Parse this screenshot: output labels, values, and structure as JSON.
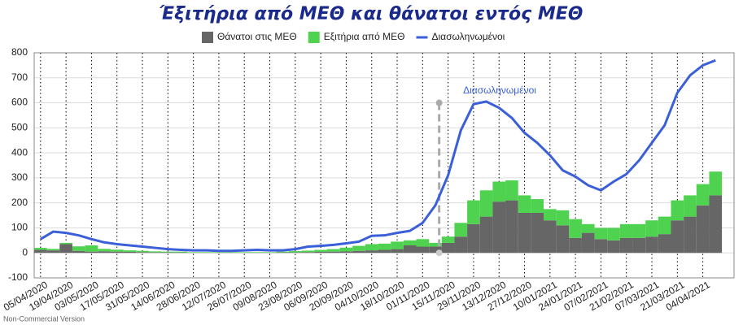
{
  "chart_data": {
    "type": "stacked-bar-line",
    "title": "Έξιτήρια από ΜΕΘ και θάνατοι εντός ΜΕΘ",
    "annotation": "Διασωληνωμένοι",
    "watermark": "Non-Commercial Version",
    "categories": [
      "05/04/2020",
      null,
      "19/04/2020",
      null,
      "03/05/2020",
      null,
      "17/05/2020",
      null,
      "31/05/2020",
      null,
      "14/06/2020",
      null,
      "28/06/2020",
      null,
      "12/07/2020",
      null,
      "26/07/2020",
      null,
      "09/08/2020",
      null,
      "23/08/2020",
      null,
      "06/09/2020",
      null,
      "20/09/2020",
      null,
      "04/10/2020",
      null,
      "18/10/2020",
      null,
      "01/11/2020",
      null,
      "15/11/2020",
      null,
      "29/11/2020",
      null,
      "13/12/2020",
      null,
      "27/12/2020",
      null,
      "10/01/2021",
      null,
      "24/01/2021",
      null,
      "07/02/2021",
      null,
      "21/02/2021",
      null,
      "07/03/2021",
      null,
      "21/03/2021",
      null,
      "04/04/2021",
      null
    ],
    "series": [
      {
        "name": "Θάνατοι στις ΜΕΘ",
        "color": "#666666",
        "kind": "bar",
        "values": [
          12,
          10,
          35,
          8,
          5,
          6,
          5,
          4,
          3,
          2,
          2,
          2,
          1,
          1,
          1,
          1,
          1,
          1,
          1,
          2,
          2,
          3,
          4,
          5,
          6,
          8,
          10,
          12,
          15,
          30,
          25,
          25,
          40,
          65,
          115,
          145,
          205,
          210,
          160,
          160,
          130,
          110,
          60,
          80,
          55,
          50,
          60,
          60,
          65,
          75,
          130,
          145,
          190,
          230
        ]
      },
      {
        "name": "Εξιτήρια από ΜΕΘ",
        "color": "#4fd24f",
        "kind": "bar",
        "values": [
          8,
          6,
          5,
          18,
          25,
          10,
          8,
          6,
          5,
          4,
          3,
          3,
          2,
          2,
          2,
          2,
          2,
          2,
          2,
          3,
          5,
          6,
          8,
          10,
          15,
          20,
          25,
          25,
          30,
          20,
          30,
          15,
          25,
          55,
          95,
          105,
          80,
          80,
          70,
          55,
          45,
          60,
          75,
          35,
          45,
          50,
          55,
          55,
          65,
          70,
          80,
          85,
          85,
          95
        ]
      },
      {
        "name": "Διασωληνωμένοι",
        "color": "#3b5fd9",
        "kind": "line",
        "values": [
          55,
          85,
          80,
          70,
          55,
          42,
          35,
          30,
          25,
          20,
          15,
          12,
          10,
          10,
          8,
          8,
          10,
          12,
          10,
          10,
          15,
          25,
          28,
          32,
          38,
          45,
          68,
          70,
          80,
          88,
          120,
          190,
          310,
          490,
          595,
          605,
          580,
          540,
          480,
          440,
          390,
          330,
          305,
          270,
          250,
          285,
          315,
          370,
          440,
          510,
          640,
          710,
          750,
          770
        ]
      }
    ],
    "ylim": [
      -100,
      800
    ],
    "yticks": [
      -100,
      0,
      100,
      200,
      300,
      400,
      500,
      600,
      700,
      800
    ],
    "grid": true
  }
}
